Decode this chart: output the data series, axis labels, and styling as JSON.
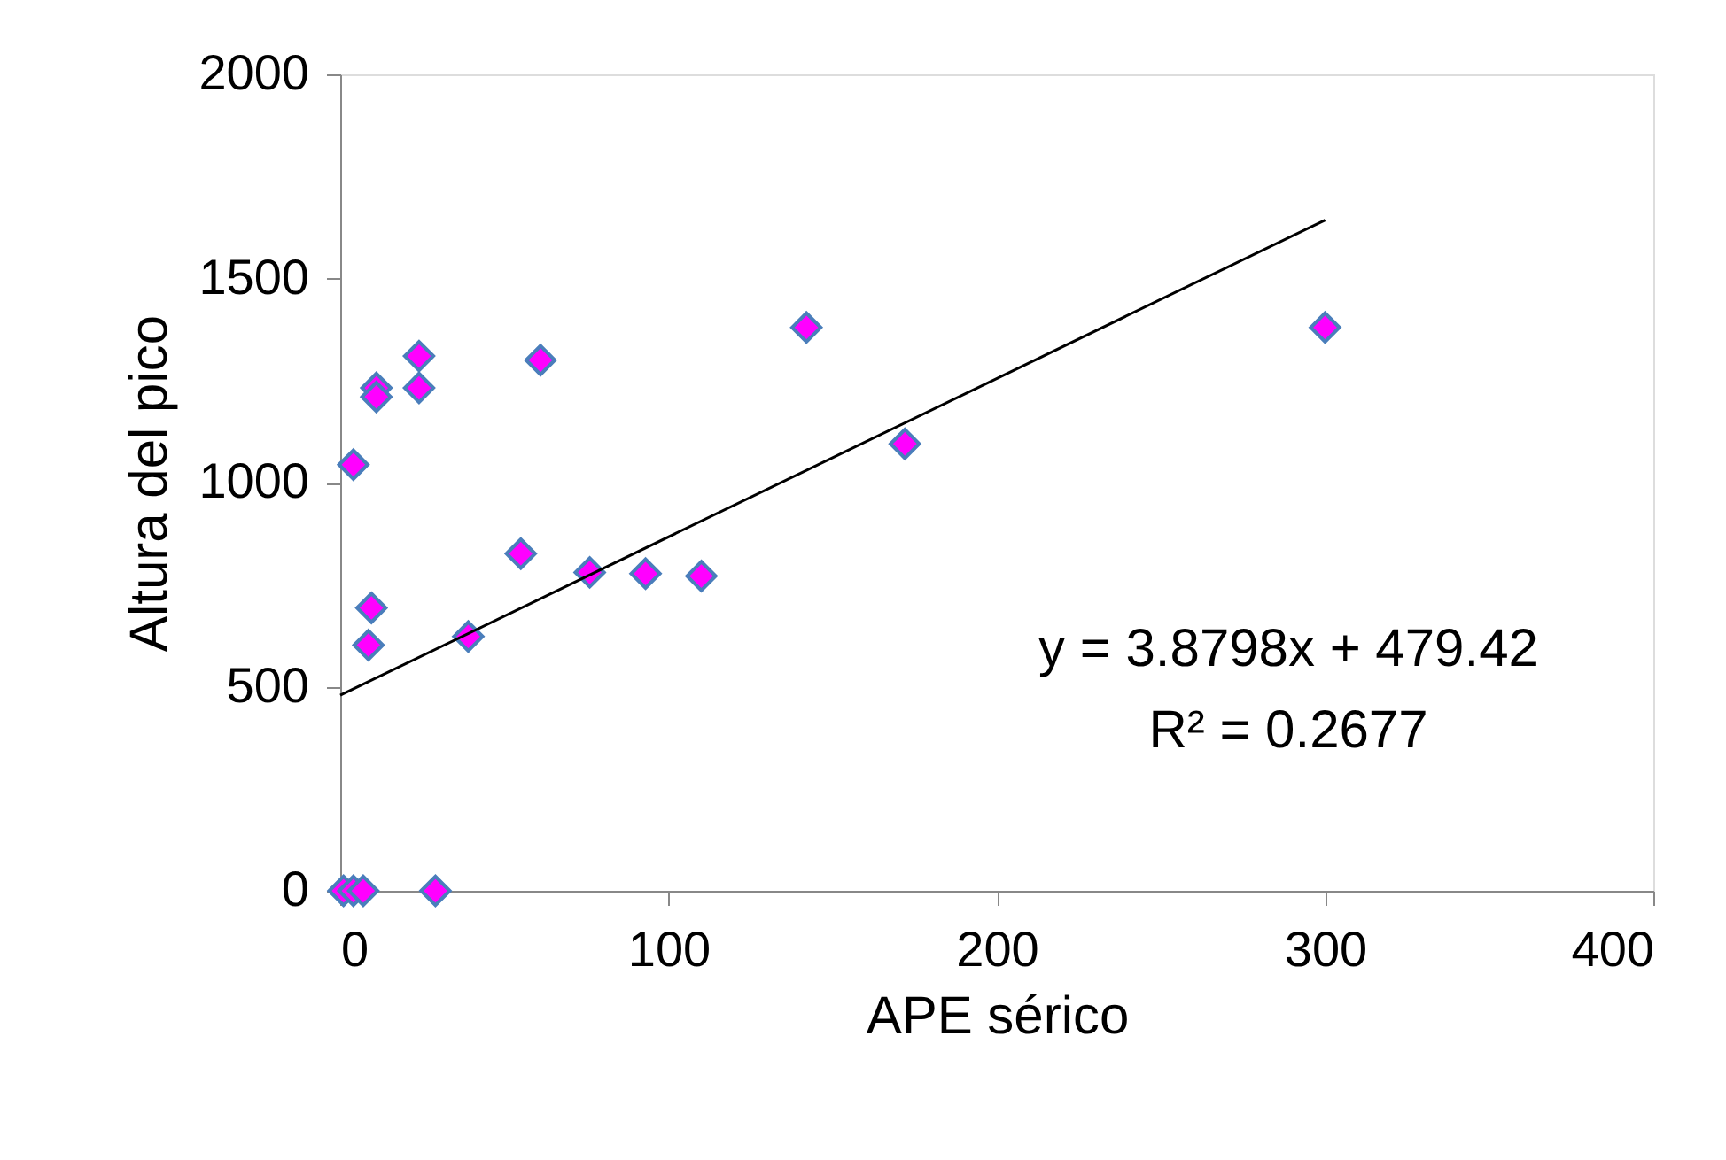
{
  "chart_data": {
    "type": "scatter",
    "xlabel": "APE sérico",
    "ylabel": "Altura del pico",
    "xlim": [
      0,
      400
    ],
    "xticks": [
      0,
      100,
      200,
      300,
      400
    ],
    "ylim": [
      0,
      2000
    ],
    "yticks": [
      0,
      500,
      1000,
      1500,
      2000
    ],
    "grid": false,
    "legend": false,
    "series": [
      {
        "type": "scatter",
        "marker": "diamond",
        "color": "#ff00ff",
        "x": [
          1,
          4,
          7,
          29,
          4,
          11,
          11,
          24,
          24,
          61,
          9.5,
          8.6,
          39,
          55,
          76,
          93,
          110,
          142,
          172,
          300
        ],
        "values": [
          0,
          0,
          0,
          0,
          1044,
          1232,
          1210,
          1310,
          1232,
          1300,
          693,
          602,
          623,
          826,
          780,
          777,
          771,
          1380,
          1095,
          1380
        ]
      },
      {
        "type": "line",
        "color": "#000000",
        "x": [
          0,
          300
        ],
        "values": [
          479,
          1643
        ]
      }
    ],
    "annotations": [
      {
        "text": "y = 3.8798x + 479.42"
      },
      {
        "text": "R² = 0.2677"
      }
    ]
  }
}
